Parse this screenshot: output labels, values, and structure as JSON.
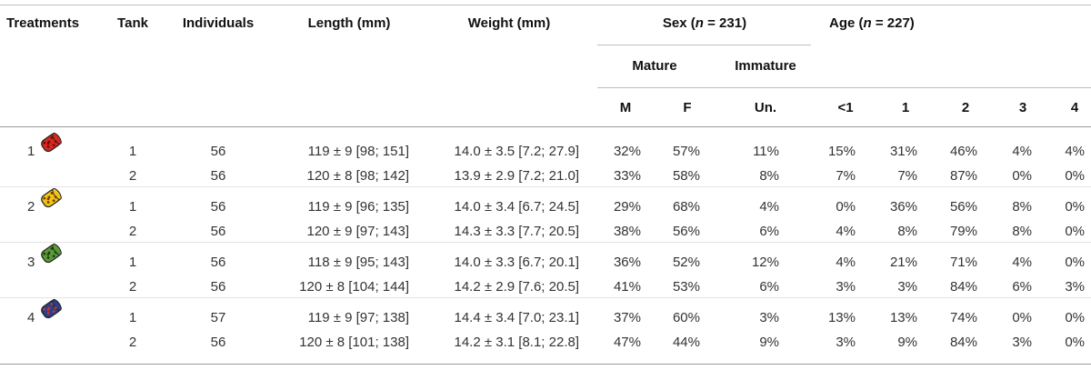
{
  "headers": {
    "treatments": "Treatments",
    "tank": "Tank",
    "individuals": "Individuals",
    "length": "Length (mm)",
    "weight": "Weight (mm)",
    "sex": "Sex (n = 231)",
    "age": "Age (n = 227)",
    "mature": "Mature",
    "immature": "Immature",
    "m": "M",
    "f": "F",
    "un": "Un.",
    "age_lt1": "<1",
    "age_1": "1",
    "age_2": "2",
    "age_3": "3",
    "age_4": "4"
  },
  "treatments": [
    {
      "label": "1",
      "icon": "red-cylinder-icon",
      "color": "#d8281f",
      "spot": "#6b0e09"
    },
    {
      "label": "2",
      "icon": "yellow-cylinder-icon",
      "color": "#f0c419",
      "spot": "#7a3f00"
    },
    {
      "label": "3",
      "icon": "green-cylinder-icon",
      "color": "#5a9a3a",
      "spot": "#1f3d12"
    },
    {
      "label": "4",
      "icon": "blue-cylinder-icon",
      "color": "#2b3f8a",
      "spot": "#c2362b"
    }
  ],
  "rows": [
    {
      "tank": "1",
      "individuals": "56",
      "length": "119 ± 9 [98; 151]",
      "weight": "14.0 ± 3.5 [7.2; 27.9]",
      "m": "32%",
      "f": "57%",
      "un": "11%",
      "lt1": "15%",
      "a1": "31%",
      "a2": "46%",
      "a3": "4%",
      "a4": "4%"
    },
    {
      "tank": "2",
      "individuals": "56",
      "length": "120 ± 8 [98; 142]",
      "weight": "13.9 ± 2.9 [7.2; 21.0]",
      "m": "33%",
      "f": "58%",
      "un": "8%",
      "lt1": "7%",
      "a1": "7%",
      "a2": "87%",
      "a3": "0%",
      "a4": "0%"
    },
    {
      "tank": "1",
      "individuals": "56",
      "length": "119 ± 9 [96; 135]",
      "weight": "14.0 ± 3.4 [6.7; 24.5]",
      "m": "29%",
      "f": "68%",
      "un": "4%",
      "lt1": "0%",
      "a1": "36%",
      "a2": "56%",
      "a3": "8%",
      "a4": "0%"
    },
    {
      "tank": "2",
      "individuals": "56",
      "length": "120 ± 9 [97; 143]",
      "weight": "14.3 ± 3.3 [7.7; 20.5]",
      "m": "38%",
      "f": "56%",
      "un": "6%",
      "lt1": "4%",
      "a1": "8%",
      "a2": "79%",
      "a3": "8%",
      "a4": "0%"
    },
    {
      "tank": "1",
      "individuals": "56",
      "length": "118 ± 9 [95; 143]",
      "weight": "14.0 ± 3.3 [6.7; 20.1]",
      "m": "36%",
      "f": "52%",
      "un": "12%",
      "lt1": "4%",
      "a1": "21%",
      "a2": "71%",
      "a3": "4%",
      "a4": "0%"
    },
    {
      "tank": "2",
      "individuals": "56",
      "length": "120 ± 8 [104; 144]",
      "weight": "14.2 ± 2.9 [7.6; 20.5]",
      "m": "41%",
      "f": "53%",
      "un": "6%",
      "lt1": "3%",
      "a1": "3%",
      "a2": "84%",
      "a3": "6%",
      "a4": "3%"
    },
    {
      "tank": "1",
      "individuals": "57",
      "length": "119 ± 9 [97; 138]",
      "weight": "14.4 ± 3.4 [7.0; 23.1]",
      "m": "37%",
      "f": "60%",
      "un": "3%",
      "lt1": "13%",
      "a1": "13%",
      "a2": "74%",
      "a3": "0%",
      "a4": "0%"
    },
    {
      "tank": "2",
      "individuals": "56",
      "length": "120 ± 8 [101; 138]",
      "weight": "14.2 ± 3.1 [8.1; 22.8]",
      "m": "47%",
      "f": "44%",
      "un": "9%",
      "lt1": "3%",
      "a1": "9%",
      "a2": "84%",
      "a3": "3%",
      "a4": "0%"
    }
  ]
}
